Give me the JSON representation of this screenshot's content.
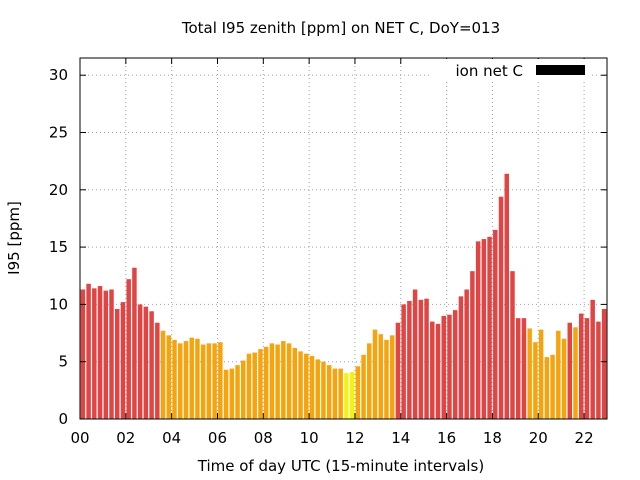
{
  "chart_data": {
    "type": "bar",
    "title": "Total I95 zenith [ppm] on NET C, DoY=013",
    "xlabel": "Time of day UTC (15-minute intervals)",
    "ylabel": "I95 [ppm]",
    "legend": {
      "label": "ion net C",
      "color": "#000000",
      "placement": "top-right"
    },
    "xlim": [
      0,
      23
    ],
    "ylim": [
      0,
      31.5
    ],
    "x_ticks": [
      "00",
      "02",
      "04",
      "06",
      "08",
      "10",
      "12",
      "14",
      "16",
      "18",
      "20",
      "22"
    ],
    "x_tick_values": [
      0,
      2,
      4,
      6,
      8,
      10,
      12,
      14,
      16,
      18,
      20,
      22
    ],
    "y_ticks": [
      "0",
      "5",
      "10",
      "15",
      "20",
      "25",
      "30"
    ],
    "y_tick_values": [
      0,
      5,
      10,
      15,
      20,
      25,
      30
    ],
    "grid": true,
    "interval_hours": 0.25,
    "color_thresholds": [
      {
        "max": 4.2,
        "color": "#f3f311"
      },
      {
        "max": 8.0,
        "color": "#f7a30c"
      },
      {
        "max": 999,
        "color": "#e24343"
      }
    ],
    "values": [
      11.3,
      11.8,
      11.4,
      11.6,
      11.2,
      11.3,
      9.6,
      10.2,
      12.2,
      13.2,
      10.0,
      9.8,
      9.4,
      8.4,
      7.7,
      7.3,
      6.9,
      6.6,
      6.8,
      7.1,
      7.0,
      6.5,
      6.6,
      6.6,
      6.7,
      4.3,
      4.4,
      4.7,
      5.1,
      5.7,
      5.8,
      6.1,
      6.3,
      6.6,
      6.5,
      6.8,
      6.6,
      6.2,
      5.9,
      5.7,
      5.5,
      5.2,
      5.0,
      4.7,
      4.4,
      4.4,
      4.0,
      4.1,
      4.6,
      5.6,
      6.6,
      7.8,
      7.4,
      6.9,
      7.3,
      8.4,
      10.0,
      10.3,
      11.3,
      10.4,
      10.5,
      8.5,
      8.3,
      9.0,
      9.1,
      9.5,
      10.7,
      11.3,
      12.9,
      15.5,
      15.7,
      15.9,
      16.5,
      19.4,
      21.4,
      12.9,
      8.8,
      8.8,
      7.9,
      6.7,
      7.8,
      5.4,
      5.6,
      7.7,
      7.0,
      8.4,
      8.0,
      9.2,
      8.8,
      10.4,
      8.5,
      9.6
    ]
  }
}
